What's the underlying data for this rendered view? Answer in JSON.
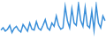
{
  "chart_data": {
    "type": "line",
    "categories": [
      null,
      null,
      null,
      null,
      null,
      null,
      null,
      null,
      null,
      null,
      null,
      null,
      null,
      null,
      null,
      null,
      null,
      null,
      null,
      null,
      null,
      null,
      null,
      null,
      null,
      null,
      null,
      null,
      null,
      null,
      null,
      null,
      null,
      null,
      null,
      null,
      null,
      null,
      null,
      null,
      null,
      null,
      null,
      null,
      null,
      null,
      null,
      null
    ],
    "values": [
      40,
      45,
      38,
      42,
      50,
      35,
      44,
      48,
      40,
      36,
      52,
      45,
      38,
      55,
      42,
      40,
      58,
      44,
      40,
      50,
      62,
      45,
      40,
      55,
      48,
      70,
      50,
      42,
      45,
      90,
      60,
      45,
      85,
      55,
      50,
      95,
      60,
      48,
      88,
      50,
      45,
      80,
      40,
      92,
      55,
      45,
      70,
      60
    ],
    "color": "#3a8fd9",
    "ylim": [
      25,
      100
    ],
    "grid": false,
    "tick_labels": false
  }
}
